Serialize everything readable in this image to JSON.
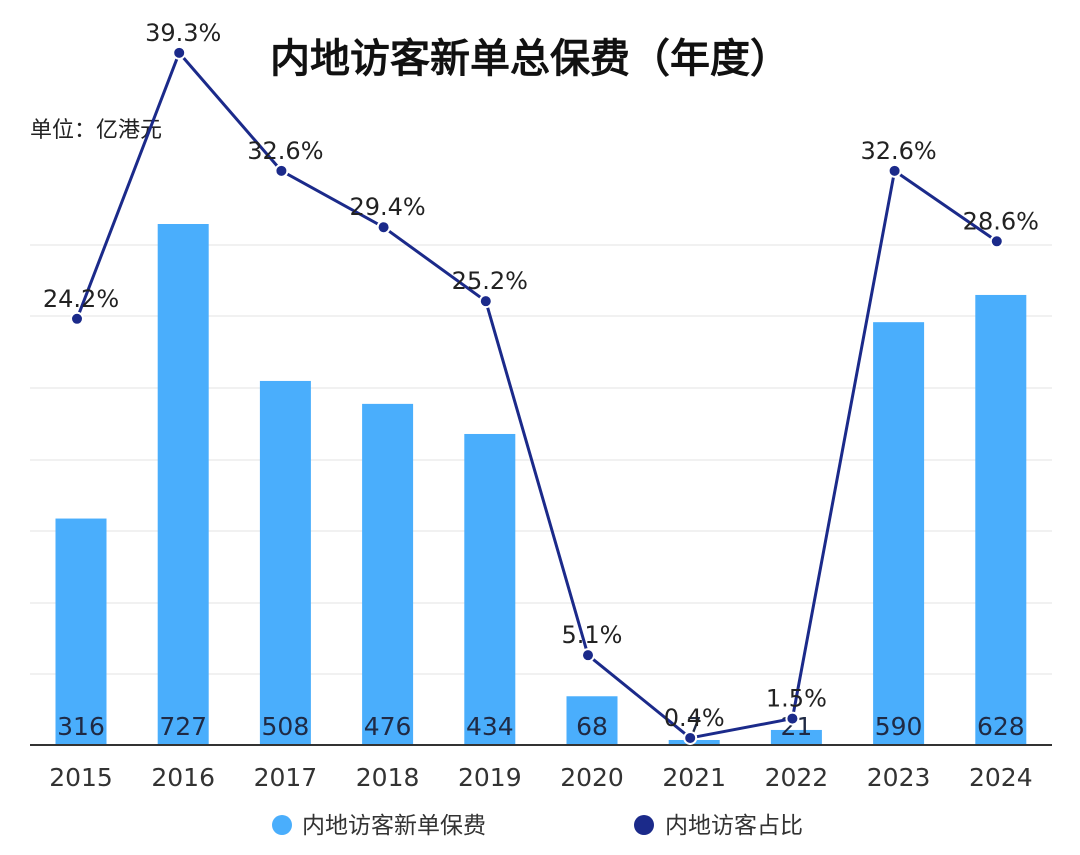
{
  "chart_data": {
    "type": "bar",
    "title": "内地访客新单总保费（年度）",
    "unit_label": "单位：亿港元",
    "categories": [
      "2015",
      "2016",
      "2017",
      "2018",
      "2019",
      "2020",
      "2021",
      "2022",
      "2023",
      "2024"
    ],
    "series": [
      {
        "name": "内地访客新单保费",
        "type": "bar",
        "color": "#4aaefc",
        "values": [
          316,
          727,
          508,
          476,
          434,
          68,
          7,
          21,
          590,
          628
        ]
      },
      {
        "name": "内地访客占比",
        "type": "line",
        "color": "#1b2a8a",
        "values": [
          24.2,
          39.3,
          32.6,
          29.4,
          25.2,
          5.1,
          0.4,
          1.5,
          32.6,
          28.6
        ],
        "labels": [
          "24.2%",
          "39.3%",
          "32.6%",
          "29.4%",
          "25.2%",
          "5.1%",
          "0.4%",
          "1.5%",
          "32.6%",
          "28.6%"
        ]
      }
    ],
    "ylim": [
      0,
      800
    ],
    "y2lim": [
      0,
      42.3
    ],
    "grid": true,
    "legend_position": "bottom"
  }
}
